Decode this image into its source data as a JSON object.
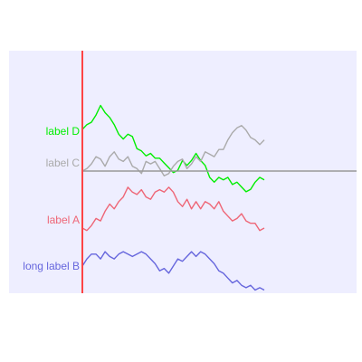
{
  "chart_data": {
    "type": "line",
    "colors": {
      "plot_background": "#eeeeff",
      "baseline": "#999999",
      "vertical_axis": "#ff4444"
    },
    "grid": false,
    "legend": "none",
    "xlim": [
      0,
      40
    ],
    "series": [
      {
        "name": "label D",
        "color": "#00ee00",
        "values": [
          0,
          2,
          3,
          6,
          10,
          7,
          5,
          2,
          -2,
          -4,
          -2,
          -3,
          -8,
          -9,
          -11,
          -10,
          -12,
          -12,
          -14,
          -16,
          -18,
          -17,
          -13,
          -15,
          -13,
          -10,
          -13,
          -15,
          -20,
          -22,
          -20,
          -21,
          -20,
          -23,
          -22,
          -24,
          -26,
          -25,
          -22,
          -20,
          -21
        ]
      },
      {
        "name": "label C",
        "color": "#aaaaaa",
        "values": [
          0,
          1,
          3,
          6,
          5,
          2,
          6,
          8,
          5,
          4,
          6,
          2,
          1,
          -1,
          4,
          3,
          4,
          1,
          -2,
          -1,
          2,
          4,
          5,
          1,
          3,
          6,
          4,
          8,
          7,
          6,
          9,
          9,
          13,
          16,
          18,
          19,
          17,
          14,
          13,
          11,
          13
        ]
      },
      {
        "name": "label A",
        "color": "#ee6677",
        "values": [
          0,
          -1,
          1,
          4,
          3,
          7,
          10,
          8,
          11,
          13,
          17,
          15,
          14,
          16,
          13,
          12,
          15,
          16,
          15,
          17,
          15,
          11,
          9,
          12,
          8,
          11,
          8,
          11,
          10,
          8,
          11,
          7,
          5,
          3,
          4,
          6,
          3,
          2,
          2,
          -1,
          0
        ]
      },
      {
        "name": "long label B",
        "color": "#6666dd",
        "values": [
          0,
          3,
          5,
          5,
          3,
          6,
          4,
          3,
          5,
          6,
          5,
          4,
          5,
          6,
          5,
          3,
          1,
          -2,
          -1,
          -3,
          0,
          3,
          2,
          4,
          6,
          4,
          6,
          5,
          3,
          1,
          -2,
          -3,
          -5,
          -7,
          -6,
          -8,
          -9,
          -8,
          -10,
          -9,
          -10
        ]
      }
    ]
  }
}
